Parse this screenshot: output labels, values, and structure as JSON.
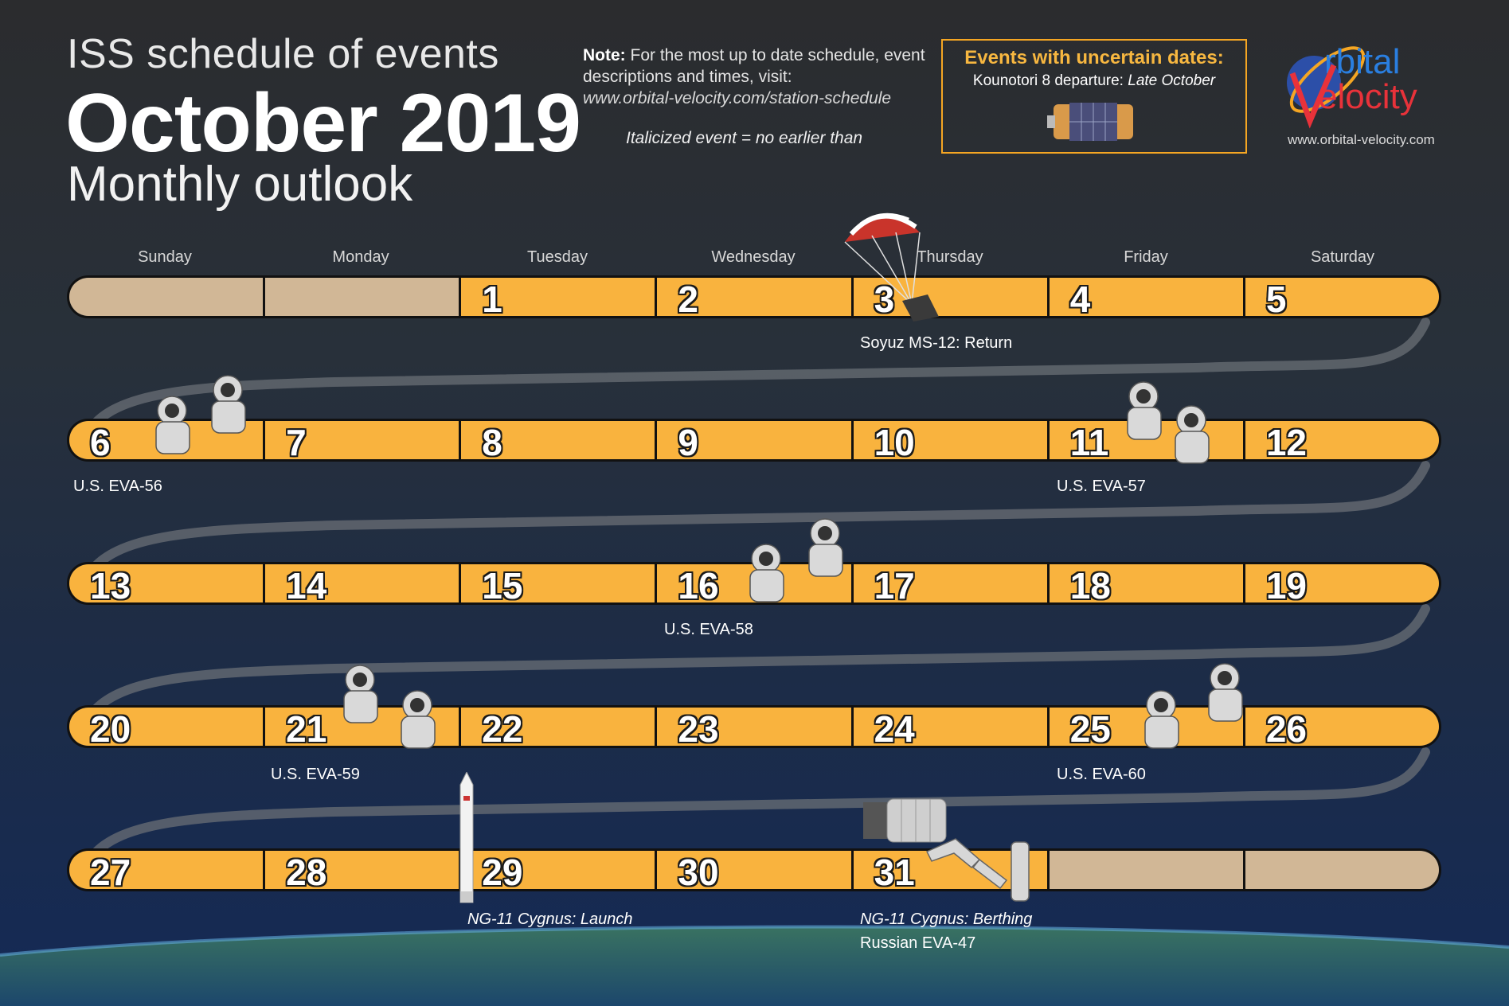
{
  "header": {
    "title_small": "ISS schedule of events",
    "title_big": "October 2019",
    "title_sub": "Monthly outlook"
  },
  "note": {
    "bold": "Note:",
    "text": "For the most up to date schedule, event descriptions and times, visit:",
    "url": "www.orbital-velocity.com/station-schedule",
    "italic_key": "Italicized event = no earlier than"
  },
  "uncertain": {
    "title": "Events with uncertain dates:",
    "item_name": "Kounotori 8 departure:",
    "item_date": "Late October"
  },
  "logo": {
    "word1": "rbital",
    "word2": "elocity",
    "url": "www.orbital-velocity.com"
  },
  "weekdays": [
    "Sunday",
    "Monday",
    "Tuesday",
    "Wednesday",
    "Thursday",
    "Friday",
    "Saturday"
  ],
  "weeks": [
    [
      "",
      "",
      "1",
      "2",
      "3",
      "4",
      "5"
    ],
    [
      "6",
      "7",
      "8",
      "9",
      "10",
      "11",
      "12"
    ],
    [
      "13",
      "14",
      "15",
      "16",
      "17",
      "18",
      "19"
    ],
    [
      "20",
      "21",
      "22",
      "23",
      "24",
      "25",
      "26"
    ],
    [
      "27",
      "28",
      "29",
      "30",
      "31",
      "",
      ""
    ]
  ],
  "events": {
    "soyuz": "Soyuz MS-12: Return",
    "eva56": "U.S. EVA-56",
    "eva57": "U.S. EVA-57",
    "eva58": "U.S. EVA-58",
    "eva59": "U.S. EVA-59",
    "eva60": "U.S. EVA-60",
    "ng11_launch": "NG-11 Cygnus: Launch",
    "ng11_berth": "NG-11 Cygnus: Berthing",
    "eva47": "Russian EVA-47"
  },
  "colors": {
    "day_fill": "#f9b33e",
    "empty_fill": "#d1b796",
    "accent": "#f5a623"
  }
}
